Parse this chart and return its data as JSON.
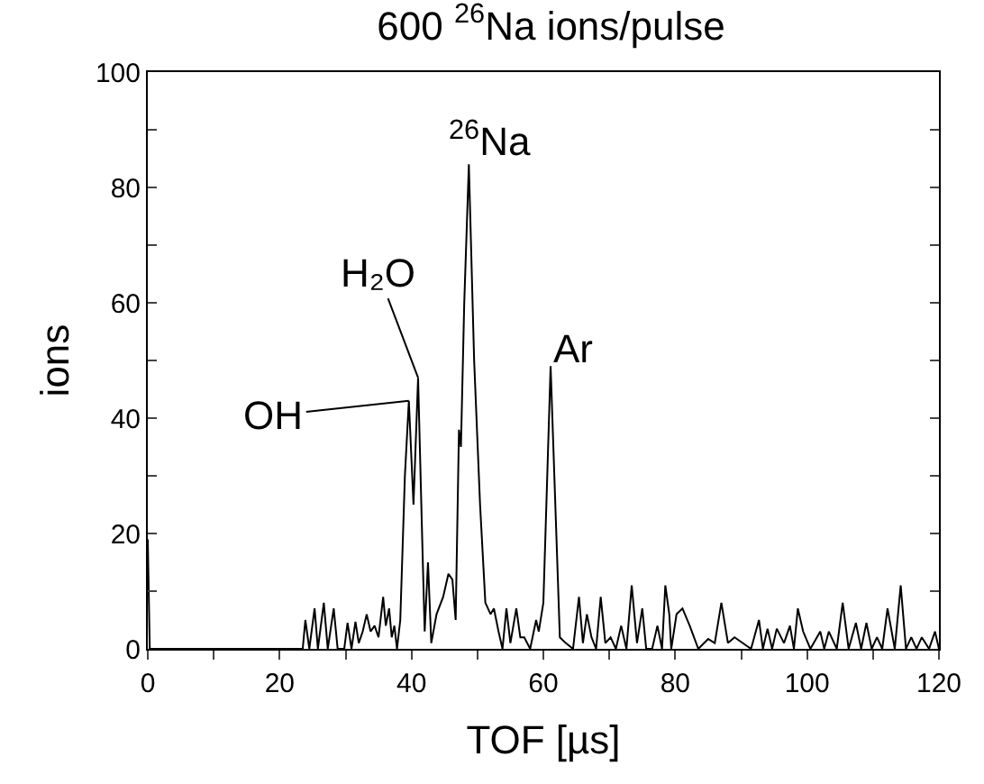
{
  "chart_data": {
    "type": "line",
    "title": "600 $^{26}$Na ions/pulse",
    "xlabel": "TOF [µs]",
    "ylabel": "ions",
    "x": [
      0,
      0.3,
      0.6,
      23.5,
      23.9,
      24.5,
      25.3,
      25.8,
      26.7,
      27.3,
      28.2,
      28.8,
      29.8,
      30.3,
      30.9,
      31.5,
      32.0,
      32.6,
      33.2,
      33.8,
      34.4,
      35.0,
      35.7,
      36.1,
      36.6,
      37.0,
      37.4,
      37.8,
      38.3,
      39.0,
      39.6,
      40.3,
      41.0,
      41.6,
      42.0,
      42.5,
      43.0,
      43.8,
      44.8,
      45.6,
      46.2,
      46.7,
      47.2,
      47.5,
      48.0,
      48.7,
      49.5,
      50.4,
      51.2,
      52.0,
      52.5,
      53.2,
      53.8,
      54.4,
      55.0,
      55.9,
      56.5,
      57.1,
      58.0,
      58.9,
      59.3,
      60.0,
      61.1,
      62.5,
      63.4,
      64.5,
      65.4,
      66.0,
      66.6,
      67.3,
      68.0,
      68.7,
      69.4,
      70.2,
      71.0,
      71.8,
      72.6,
      73.4,
      74.2,
      75.0,
      75.6,
      76.5,
      77.3,
      78.0,
      78.5,
      79.1,
      79.4,
      80.2,
      81.1,
      82.2,
      83.5,
      85.0,
      86.0,
      87.0,
      88.0,
      89.0,
      91.5,
      92.7,
      93.3,
      94.0,
      94.7,
      95.4,
      96.5,
      97.4,
      98.0,
      98.6,
      99.4,
      100.5,
      102.0,
      102.6,
      103.3,
      104.5,
      105.4,
      106.3,
      107.4,
      108.2,
      109.0,
      109.8,
      110.6,
      111.4,
      112.2,
      113.3,
      114.2,
      115.0,
      115.8,
      116.6,
      117.4,
      118.5,
      119.4,
      120
    ],
    "series": [
      {
        "color": "#000000",
        "values": [
          19,
          0,
          0,
          0,
          5,
          0,
          7,
          0,
          8,
          0,
          7,
          0,
          0,
          4.5,
          0,
          4.7,
          1,
          3,
          6,
          3,
          4,
          2,
          9,
          4,
          7,
          2,
          4,
          0,
          5,
          30,
          43,
          25,
          47,
          20,
          3,
          15,
          1,
          6,
          9,
          13,
          12,
          5,
          38,
          35,
          60,
          84,
          50,
          25,
          8,
          6,
          7,
          3,
          0,
          7,
          1,
          7,
          2,
          2,
          0,
          5,
          3,
          8,
          49,
          2,
          1,
          0,
          9,
          1,
          6,
          2,
          0,
          9,
          1,
          2,
          0,
          4,
          0,
          11,
          1,
          7,
          0,
          0,
          4,
          0,
          11,
          6,
          0,
          6,
          7,
          4,
          0,
          1.7,
          1,
          8,
          1,
          2,
          0,
          5,
          0,
          3.5,
          0,
          3.5,
          1,
          4,
          0,
          7,
          3,
          0,
          3,
          0,
          3,
          0,
          8,
          0,
          4.5,
          0,
          4.5,
          0,
          2,
          0,
          7,
          0,
          11,
          0,
          2,
          0,
          2,
          0,
          3,
          0
        ]
      }
    ],
    "xlim": [
      0,
      120
    ],
    "ylim": [
      0,
      100
    ],
    "xticks": [
      0,
      {
        "value": 10,
        "label": null
      },
      20,
      {
        "value": 30,
        "label": null
      },
      40,
      {
        "value": 50,
        "label": null
      },
      60,
      {
        "value": 70,
        "label": null
      },
      80,
      {
        "value": 90,
        "label": null
      },
      100,
      {
        "value": 110,
        "label": null
      },
      120
    ],
    "yticks": [
      0,
      {
        "value": 10,
        "label": null
      },
      20,
      {
        "value": 30,
        "label": null
      },
      40,
      {
        "value": 50,
        "label": null
      },
      60,
      {
        "value": 70,
        "label": null
      },
      80,
      {
        "value": 90,
        "label": null
      },
      100
    ],
    "annotations": [
      {
        "text": "OH",
        "x": 39.6,
        "y": 43
      },
      {
        "text": "H₂O",
        "x": 41.0,
        "y": 47
      },
      {
        "text": "$^{26}$Na",
        "x": 48.7,
        "y": 84
      },
      {
        "text": "Ar",
        "x": 61.1,
        "y": 49
      }
    ],
    "marker": "none",
    "line_style": "solid"
  }
}
